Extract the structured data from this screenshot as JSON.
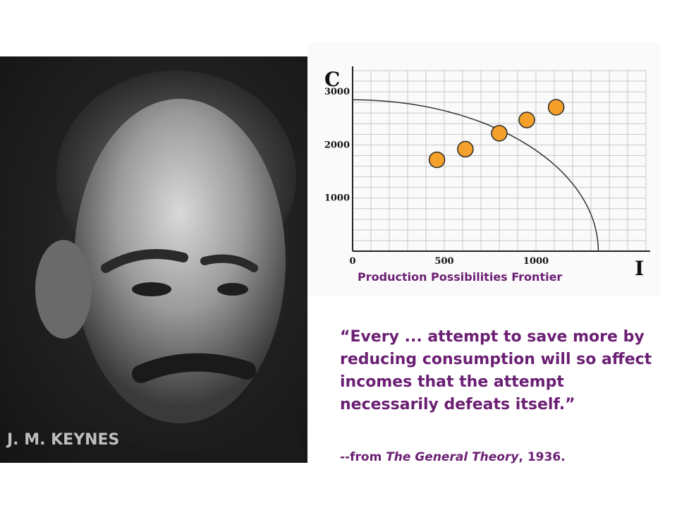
{
  "portrait": {
    "caption": "J. M. KEYNES"
  },
  "chart_data": {
    "type": "scatter",
    "title": "Production Possibilities Frontier",
    "xlabel": "I",
    "ylabel": "C",
    "xlim": [
      0,
      1600
    ],
    "ylim": [
      0,
      3400
    ],
    "x_ticks": [
      "0",
      "500",
      "1000"
    ],
    "y_ticks": [
      "1000",
      "2000",
      "3000"
    ],
    "grid": true,
    "frontier": {
      "shape": "concave-curve",
      "c_intercept": 2850,
      "i_intercept": 1340
    },
    "points": [
      {
        "x": 460,
        "y": 1720
      },
      {
        "x": 615,
        "y": 1920
      },
      {
        "x": 800,
        "y": 2220
      },
      {
        "x": 950,
        "y": 2470
      },
      {
        "x": 1110,
        "y": 2710
      }
    ],
    "point_color": "#f5a02b",
    "point_stroke": "#2a2a2a"
  },
  "quote": {
    "text": "“Every ... attempt to save more by reducing consumption will so affect incomes that the attempt necessarily defeats itself.”"
  },
  "citation": {
    "prefix": "--from ",
    "book": "The General Theory",
    "suffix": ", 1936."
  },
  "colors": {
    "accent": "#6b1f73",
    "caption": "#bfbfbf"
  }
}
